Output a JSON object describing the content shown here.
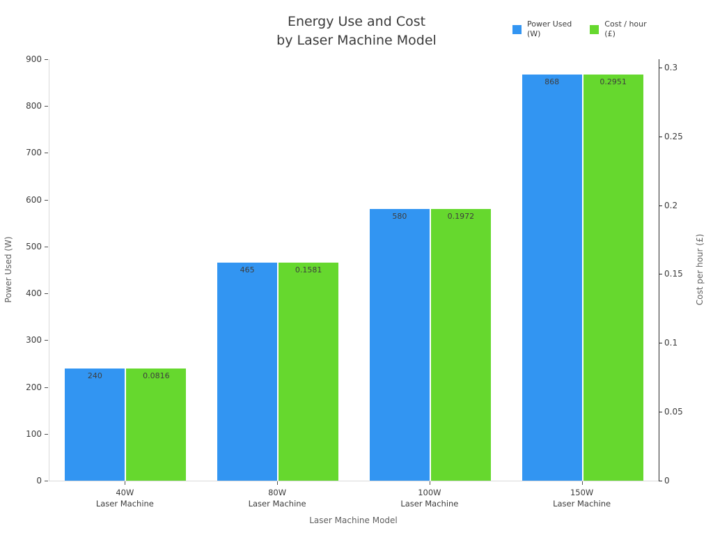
{
  "title": {
    "line1": "Energy Use and Cost",
    "line2": "by Laser Machine Model"
  },
  "legend": {
    "items": [
      {
        "label_line1": "Power Used",
        "label_line2": "(W)",
        "color": "#3295f2"
      },
      {
        "label_line1": "Cost / hour",
        "label_line2": "(£)",
        "color": "#66d82e"
      }
    ]
  },
  "axes": {
    "xlabel": "Laser Machine Model",
    "ylabel_left": "Power Used (W)",
    "ylabel_right": "Cost per hour (£)"
  },
  "chart_data": {
    "type": "bar",
    "title": "Energy Use and Cost by Laser Machine Model",
    "categories": [
      {
        "line1": "40W",
        "line2": "Laser Machine"
      },
      {
        "line1": "80W",
        "line2": "Laser Machine"
      },
      {
        "line1": "100W",
        "line2": "Laser Machine"
      },
      {
        "line1": "150W",
        "line2": "Laser Machine"
      }
    ],
    "series": [
      {
        "name": "Power Used (W)",
        "axis": "left",
        "color": "#3295f2",
        "values": [
          240,
          465,
          580,
          868
        ],
        "labels": [
          "240",
          "465",
          "580",
          "868"
        ]
      },
      {
        "name": "Cost / hour (£)",
        "axis": "right",
        "color": "#66d82e",
        "values": [
          0.0816,
          0.1581,
          0.1972,
          0.2951
        ],
        "labels": [
          "0.0816",
          "0.1581",
          "0.1972",
          "0.2951"
        ]
      }
    ],
    "xlabel": "Laser Machine Model",
    "ylabel": "Power Used (W)",
    "y2label": "Cost per hour (£)",
    "ylim": [
      0,
      900
    ],
    "y2lim": [
      0,
      0.306
    ],
    "yticks": [
      0,
      100,
      200,
      300,
      400,
      500,
      600,
      700,
      800,
      900
    ],
    "ytick_labels": [
      "0",
      "100",
      "200",
      "300",
      "400",
      "500",
      "600",
      "700",
      "800",
      "900"
    ],
    "y2ticks": [
      0,
      0.05,
      0.1,
      0.15,
      0.2,
      0.25,
      0.3
    ],
    "y2tick_labels": [
      "0",
      "0.05",
      "0.1",
      "0.15",
      "0.2",
      "0.25",
      "0.3"
    ],
    "grid": false,
    "legend_position": "top-right",
    "bar_value_labels": "inside-top"
  }
}
